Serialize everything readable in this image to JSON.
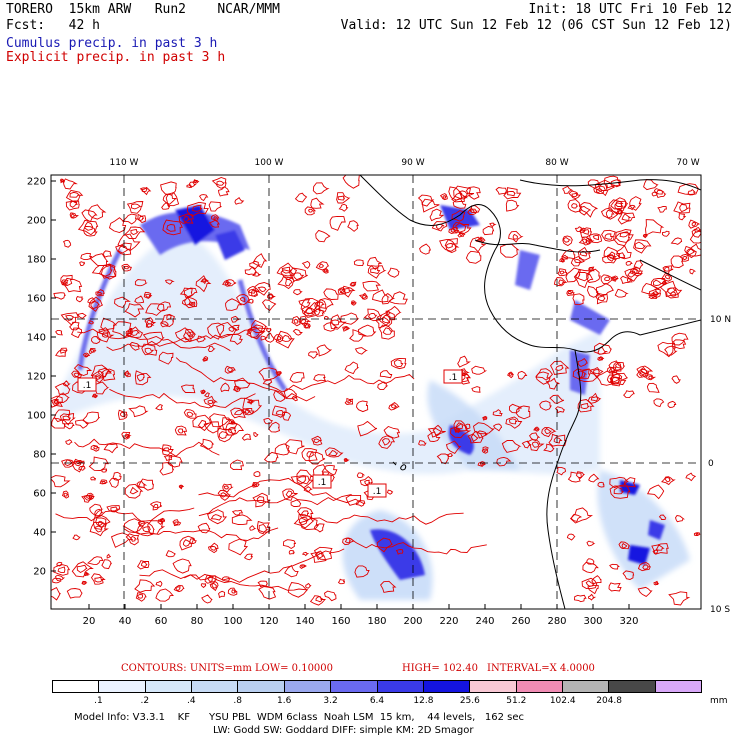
{
  "header": {
    "line1_left": "TORERO  15km ARW   Run2    NCAR/MMM",
    "line1_right": "Init: 18 UTC Fri 10 Feb 12",
    "line2_left": "Fcst:   42 h",
    "line2_right": "Valid: 12 UTC Sun 12 Feb 12 (06 CST Sun 12 Feb 12)",
    "cumulus": "Cumulus precip. in past 3 h",
    "explicit": "Explicit precip. in past 3 h"
  },
  "axes": {
    "lon_labels": [
      "110 W",
      "100 W",
      "90 W",
      "80 W",
      "70 W"
    ],
    "lat_labels": [
      "10 N",
      "0",
      "10 S"
    ],
    "y_ticks": [
      "220",
      "200",
      "180",
      "160",
      "140",
      "120",
      "100",
      "80",
      "60",
      "40",
      "20"
    ],
    "x_ticks": [
      "20",
      "40",
      "60",
      "80",
      "100",
      "120",
      "140",
      "160",
      "180",
      "200",
      "220",
      "240",
      "260",
      "280",
      "300",
      "320"
    ]
  },
  "colors": {
    "contour": "#e00000",
    "cumulus_light": "#c8dcf8",
    "cumulus_mid": "#6a6af0",
    "cumulus_dark": "#1010e0",
    "coast": "#000000"
  },
  "map": {
    "boxed_labels": [
      ".1",
      ".1",
      ".1",
      ".1"
    ]
  },
  "contours": {
    "units": "CONTOURS:  UNITS=mm  LOW= 0.10000",
    "high": "HIGH=  102.40",
    "interval": "INTERVAL=X  4.0000"
  },
  "colorbar": {
    "colors": [
      "#ffffff",
      "#eaf2ff",
      "#d6e8fa",
      "#c7dbf5",
      "#b9cff0",
      "#9aa8ee",
      "#6a6af0",
      "#3a3ae8",
      "#1414e0",
      "#f8c8d4",
      "#f08cb4",
      "#b4b4b4",
      "#484848",
      "#d8a8f8"
    ],
    "labels": [
      ".1",
      ".2",
      ".4",
      ".8",
      "1.6",
      "3.2",
      "6.4",
      "12.8",
      "25.6",
      "51.2",
      "102.4",
      "204.8"
    ],
    "unit": "mm"
  },
  "footer": {
    "line1": "Model Info: V3.3.1    KF      YSU PBL  WDM 6class  Noah LSM  15 km,    44 levels,   162 sec",
    "line2": "LW: Godd SW: Goddard DIFF: simple KM: 2D Smagor"
  }
}
